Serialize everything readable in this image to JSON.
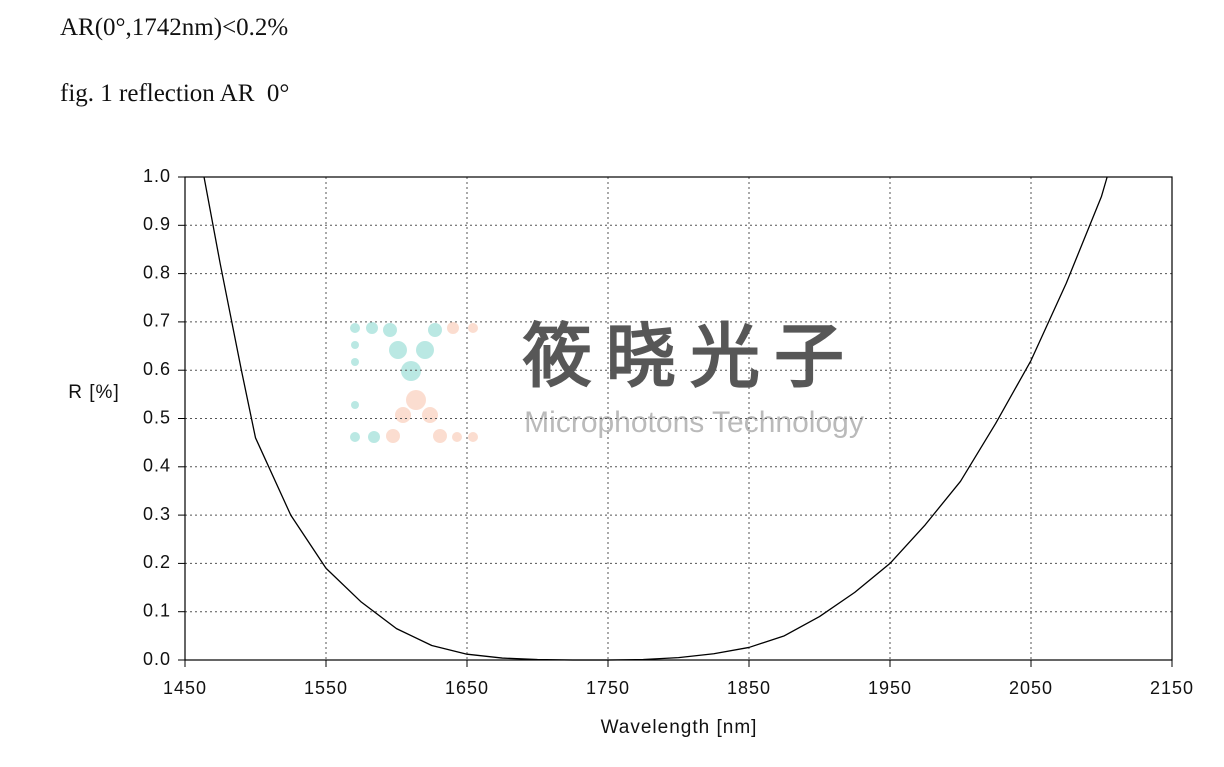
{
  "spec": "AR(0°,1742nm)<0.2%",
  "caption": "fig. 1 reflection AR  0°",
  "watermark": {
    "name": "筱晓光子",
    "subtitle": "Microphotons Technology"
  },
  "chart_data": {
    "type": "line",
    "x_label": "Wavelength [nm]",
    "y_label": "R [%]",
    "x": [
      1463.5,
      1475,
      1490,
      1500,
      1525,
      1550,
      1575,
      1600,
      1625,
      1650,
      1675,
      1700,
      1725,
      1750,
      1775,
      1800,
      1825,
      1850,
      1875,
      1900,
      1925,
      1950,
      1975,
      2000,
      2025,
      2050,
      2075,
      2100,
      2104
    ],
    "series": [
      {
        "name": "reflection",
        "color": "#000000",
        "values": [
          1.0,
          0.82,
          0.6,
          0.46,
          0.3,
          0.19,
          0.12,
          0.065,
          0.03,
          0.012,
          0.004,
          0.001,
          0,
          0,
          0.001,
          0.005,
          0.013,
          0.026,
          0.05,
          0.09,
          0.14,
          0.2,
          0.28,
          0.37,
          0.49,
          0.62,
          0.78,
          0.96,
          1.0
        ]
      }
    ],
    "xlim": [
      1450,
      2150
    ],
    "ylim": [
      0,
      1
    ],
    "xticks": [
      1450,
      1550,
      1650,
      1750,
      1850,
      1950,
      2050,
      2150
    ],
    "yticks": [
      {
        "value": 0,
        "label": "0.0"
      },
      0.1,
      0.2,
      0.3,
      0.4,
      0.5,
      0.6,
      0.7,
      0.8,
      0.9,
      {
        "value": 1,
        "label": "1.0"
      }
    ],
    "grid": true
  }
}
